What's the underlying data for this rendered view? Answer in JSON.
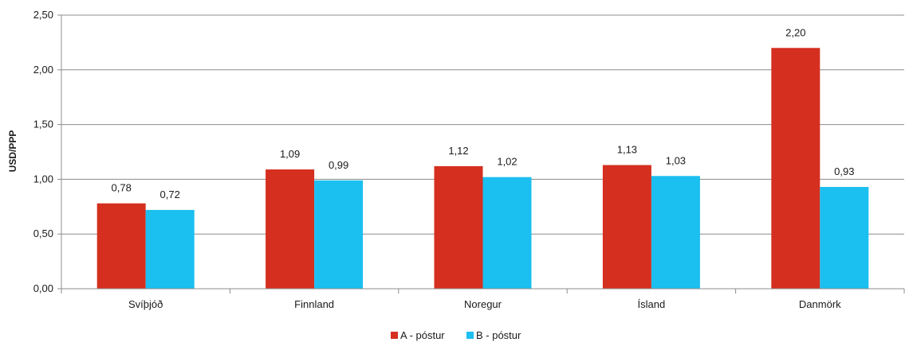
{
  "chart_data": {
    "type": "bar",
    "title": "",
    "xlabel": "",
    "ylabel": "USD/PPP",
    "ylim": [
      0,
      2.5
    ],
    "yticks": [
      "0,00",
      "0,50",
      "1,00",
      "1,50",
      "2,00",
      "2,50"
    ],
    "ytick_values": [
      0,
      0.5,
      1.0,
      1.5,
      2.0,
      2.5
    ],
    "grid": true,
    "legend_position": "bottom",
    "categories": [
      "Svíþjóð",
      "Finnland",
      "Noregur",
      "Ísland",
      "Danmörk"
    ],
    "series": [
      {
        "name": "A - póstur",
        "color": "#d52f20",
        "values": [
          0.78,
          1.09,
          1.12,
          1.13,
          2.2
        ],
        "labels": [
          "0,78",
          "1,09",
          "1,12",
          "1,13",
          "2,20"
        ]
      },
      {
        "name": "B - póstur",
        "color": "#1bbff0",
        "values": [
          0.72,
          0.99,
          1.02,
          1.03,
          0.93
        ],
        "labels": [
          "0,72",
          "0,99",
          "1,02",
          "1,03",
          "0,93"
        ]
      }
    ]
  }
}
